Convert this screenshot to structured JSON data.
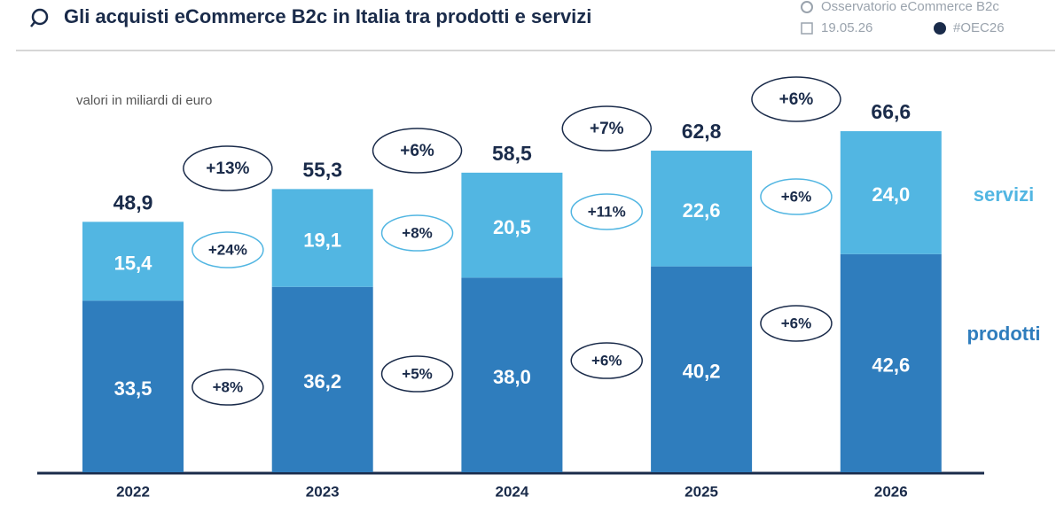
{
  "header": {
    "title": "Gli acquisti eCommerce B2c in Italia tra prodotti e servizi",
    "source": "Osservatorio eCommerce B2c",
    "date": "19.05.26",
    "hashtag": "#OEC26"
  },
  "chart_data": {
    "type": "bar",
    "stacked": true,
    "unit_note": "valori in miliardi di euro",
    "categories": [
      "2022",
      "2023",
      "2024",
      "2025",
      "2026"
    ],
    "series": [
      {
        "name": "prodotti",
        "color": "#2f7dbd",
        "values": [
          33.5,
          36.2,
          38.0,
          40.2,
          42.6
        ],
        "value_labels": [
          "33,5",
          "36,2",
          "38,0",
          "40,2",
          "42,6"
        ]
      },
      {
        "name": "servizi",
        "color": "#52b6e2",
        "values": [
          15.4,
          19.1,
          20.5,
          22.6,
          24.0
        ],
        "value_labels": [
          "15,4",
          "19,1",
          "20,5",
          "22,6",
          "24,0"
        ]
      }
    ],
    "totals": {
      "values": [
        48.9,
        55.3,
        58.5,
        62.8,
        66.6
      ],
      "value_labels": [
        "48,9",
        "55,3",
        "58,5",
        "62,8",
        "66,6"
      ]
    },
    "growth": {
      "total": [
        "+13%",
        "+6%",
        "+7%",
        "+6%"
      ],
      "servizi": [
        "+24%",
        "+8%",
        "+11%",
        "+6%"
      ],
      "prodotti": [
        "+8%",
        "+5%",
        "+6%",
        "+6%"
      ]
    }
  }
}
